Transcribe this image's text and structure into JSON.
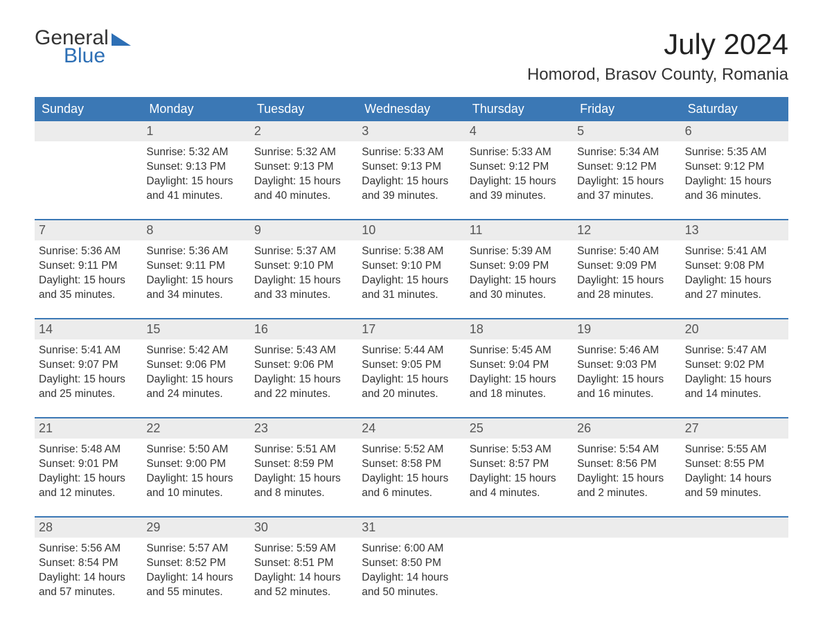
{
  "logo": {
    "word1": "General",
    "word2": "Blue"
  },
  "title": "July 2024",
  "location": "Homorod, Brasov County, Romania",
  "colors": {
    "header_bg": "#3b78b5",
    "header_text": "#ffffff",
    "daynum_bg": "#ececec",
    "body_text": "#333333",
    "divider": "#3b78b5",
    "logo_accent": "#2d6fb5",
    "page_bg": "#ffffff"
  },
  "typography": {
    "title_fontsize": 42,
    "location_fontsize": 24,
    "dow_fontsize": 18,
    "daynum_fontsize": 18,
    "body_fontsize": 15.5
  },
  "layout": {
    "columns": 7,
    "rows": 5
  },
  "days_of_week": [
    "Sunday",
    "Monday",
    "Tuesday",
    "Wednesday",
    "Thursday",
    "Friday",
    "Saturday"
  ],
  "weeks": [
    [
      {
        "num": "",
        "sunrise": "",
        "sunset": "",
        "daylight": ""
      },
      {
        "num": "1",
        "sunrise": "Sunrise: 5:32 AM",
        "sunset": "Sunset: 9:13 PM",
        "daylight": "Daylight: 15 hours and 41 minutes."
      },
      {
        "num": "2",
        "sunrise": "Sunrise: 5:32 AM",
        "sunset": "Sunset: 9:13 PM",
        "daylight": "Daylight: 15 hours and 40 minutes."
      },
      {
        "num": "3",
        "sunrise": "Sunrise: 5:33 AM",
        "sunset": "Sunset: 9:13 PM",
        "daylight": "Daylight: 15 hours and 39 minutes."
      },
      {
        "num": "4",
        "sunrise": "Sunrise: 5:33 AM",
        "sunset": "Sunset: 9:12 PM",
        "daylight": "Daylight: 15 hours and 39 minutes."
      },
      {
        "num": "5",
        "sunrise": "Sunrise: 5:34 AM",
        "sunset": "Sunset: 9:12 PM",
        "daylight": "Daylight: 15 hours and 37 minutes."
      },
      {
        "num": "6",
        "sunrise": "Sunrise: 5:35 AM",
        "sunset": "Sunset: 9:12 PM",
        "daylight": "Daylight: 15 hours and 36 minutes."
      }
    ],
    [
      {
        "num": "7",
        "sunrise": "Sunrise: 5:36 AM",
        "sunset": "Sunset: 9:11 PM",
        "daylight": "Daylight: 15 hours and 35 minutes."
      },
      {
        "num": "8",
        "sunrise": "Sunrise: 5:36 AM",
        "sunset": "Sunset: 9:11 PM",
        "daylight": "Daylight: 15 hours and 34 minutes."
      },
      {
        "num": "9",
        "sunrise": "Sunrise: 5:37 AM",
        "sunset": "Sunset: 9:10 PM",
        "daylight": "Daylight: 15 hours and 33 minutes."
      },
      {
        "num": "10",
        "sunrise": "Sunrise: 5:38 AM",
        "sunset": "Sunset: 9:10 PM",
        "daylight": "Daylight: 15 hours and 31 minutes."
      },
      {
        "num": "11",
        "sunrise": "Sunrise: 5:39 AM",
        "sunset": "Sunset: 9:09 PM",
        "daylight": "Daylight: 15 hours and 30 minutes."
      },
      {
        "num": "12",
        "sunrise": "Sunrise: 5:40 AM",
        "sunset": "Sunset: 9:09 PM",
        "daylight": "Daylight: 15 hours and 28 minutes."
      },
      {
        "num": "13",
        "sunrise": "Sunrise: 5:41 AM",
        "sunset": "Sunset: 9:08 PM",
        "daylight": "Daylight: 15 hours and 27 minutes."
      }
    ],
    [
      {
        "num": "14",
        "sunrise": "Sunrise: 5:41 AM",
        "sunset": "Sunset: 9:07 PM",
        "daylight": "Daylight: 15 hours and 25 minutes."
      },
      {
        "num": "15",
        "sunrise": "Sunrise: 5:42 AM",
        "sunset": "Sunset: 9:06 PM",
        "daylight": "Daylight: 15 hours and 24 minutes."
      },
      {
        "num": "16",
        "sunrise": "Sunrise: 5:43 AM",
        "sunset": "Sunset: 9:06 PM",
        "daylight": "Daylight: 15 hours and 22 minutes."
      },
      {
        "num": "17",
        "sunrise": "Sunrise: 5:44 AM",
        "sunset": "Sunset: 9:05 PM",
        "daylight": "Daylight: 15 hours and 20 minutes."
      },
      {
        "num": "18",
        "sunrise": "Sunrise: 5:45 AM",
        "sunset": "Sunset: 9:04 PM",
        "daylight": "Daylight: 15 hours and 18 minutes."
      },
      {
        "num": "19",
        "sunrise": "Sunrise: 5:46 AM",
        "sunset": "Sunset: 9:03 PM",
        "daylight": "Daylight: 15 hours and 16 minutes."
      },
      {
        "num": "20",
        "sunrise": "Sunrise: 5:47 AM",
        "sunset": "Sunset: 9:02 PM",
        "daylight": "Daylight: 15 hours and 14 minutes."
      }
    ],
    [
      {
        "num": "21",
        "sunrise": "Sunrise: 5:48 AM",
        "sunset": "Sunset: 9:01 PM",
        "daylight": "Daylight: 15 hours and 12 minutes."
      },
      {
        "num": "22",
        "sunrise": "Sunrise: 5:50 AM",
        "sunset": "Sunset: 9:00 PM",
        "daylight": "Daylight: 15 hours and 10 minutes."
      },
      {
        "num": "23",
        "sunrise": "Sunrise: 5:51 AM",
        "sunset": "Sunset: 8:59 PM",
        "daylight": "Daylight: 15 hours and 8 minutes."
      },
      {
        "num": "24",
        "sunrise": "Sunrise: 5:52 AM",
        "sunset": "Sunset: 8:58 PM",
        "daylight": "Daylight: 15 hours and 6 minutes."
      },
      {
        "num": "25",
        "sunrise": "Sunrise: 5:53 AM",
        "sunset": "Sunset: 8:57 PM",
        "daylight": "Daylight: 15 hours and 4 minutes."
      },
      {
        "num": "26",
        "sunrise": "Sunrise: 5:54 AM",
        "sunset": "Sunset: 8:56 PM",
        "daylight": "Daylight: 15 hours and 2 minutes."
      },
      {
        "num": "27",
        "sunrise": "Sunrise: 5:55 AM",
        "sunset": "Sunset: 8:55 PM",
        "daylight": "Daylight: 14 hours and 59 minutes."
      }
    ],
    [
      {
        "num": "28",
        "sunrise": "Sunrise: 5:56 AM",
        "sunset": "Sunset: 8:54 PM",
        "daylight": "Daylight: 14 hours and 57 minutes."
      },
      {
        "num": "29",
        "sunrise": "Sunrise: 5:57 AM",
        "sunset": "Sunset: 8:52 PM",
        "daylight": "Daylight: 14 hours and 55 minutes."
      },
      {
        "num": "30",
        "sunrise": "Sunrise: 5:59 AM",
        "sunset": "Sunset: 8:51 PM",
        "daylight": "Daylight: 14 hours and 52 minutes."
      },
      {
        "num": "31",
        "sunrise": "Sunrise: 6:00 AM",
        "sunset": "Sunset: 8:50 PM",
        "daylight": "Daylight: 14 hours and 50 minutes."
      },
      {
        "num": "",
        "sunrise": "",
        "sunset": "",
        "daylight": ""
      },
      {
        "num": "",
        "sunrise": "",
        "sunset": "",
        "daylight": ""
      },
      {
        "num": "",
        "sunrise": "",
        "sunset": "",
        "daylight": ""
      }
    ]
  ]
}
